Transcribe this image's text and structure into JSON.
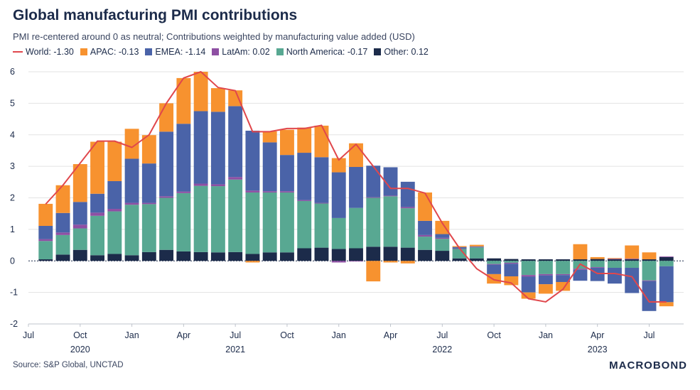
{
  "title": "Global manufacturing PMI contributions",
  "subtitle": "PMI re-centered around 0 as neutral; Contributions weighted by manufacturing value added (USD)",
  "source": "Source: S&P Global, UNCTAD",
  "logo": "MACROBOND",
  "legend": [
    {
      "label": "World: -1.30",
      "color": "#e0474c",
      "kind": "line"
    },
    {
      "label": "APAC: -0.13",
      "color": "#f7922f",
      "kind": "box"
    },
    {
      "label": "EMEA: -1.14",
      "color": "#4a63a8",
      "kind": "box"
    },
    {
      "label": "LatAm: 0.02",
      "color": "#8e4fa3",
      "kind": "box"
    },
    {
      "label": "North America: -0.17",
      "color": "#58a892",
      "kind": "box"
    },
    {
      "label": "Other: 0.12",
      "color": "#1c2b4a",
      "kind": "box"
    }
  ],
  "chart_data": {
    "type": "bar",
    "stacked": true,
    "x": [
      "2020-08",
      "2020-09",
      "2020-10",
      "2020-11",
      "2020-12",
      "2021-01",
      "2021-02",
      "2021-03",
      "2021-04",
      "2021-05",
      "2021-06",
      "2021-07",
      "2021-08",
      "2021-09",
      "2021-10",
      "2021-11",
      "2021-12",
      "2022-01",
      "2022-02",
      "2022-03",
      "2022-04",
      "2022-05",
      "2022-06",
      "2022-07",
      "2022-08",
      "2022-09",
      "2022-10",
      "2022-11",
      "2022-12",
      "2023-01",
      "2023-02",
      "2023-03",
      "2023-04",
      "2023-05",
      "2023-06",
      "2023-07",
      "2023-08"
    ],
    "x_ticks": [
      {
        "date": "2020-07",
        "label": "Jul"
      },
      {
        "date": "2020-10",
        "label": "Oct"
      },
      {
        "date": "2021-01",
        "label": "Jan"
      },
      {
        "date": "2021-04",
        "label": "Apr"
      },
      {
        "date": "2021-07",
        "label": "Jul"
      },
      {
        "date": "2021-10",
        "label": "Oct"
      },
      {
        "date": "2022-01",
        "label": "Jan"
      },
      {
        "date": "2022-04",
        "label": "Apr"
      },
      {
        "date": "2022-07",
        "label": "Jul"
      },
      {
        "date": "2022-10",
        "label": "Oct"
      },
      {
        "date": "2023-01",
        "label": "Jan"
      },
      {
        "date": "2023-04",
        "label": "Apr"
      },
      {
        "date": "2023-07",
        "label": "Jul"
      }
    ],
    "year_labels": [
      {
        "date": "2020-10",
        "label": "2020"
      },
      {
        "date": "2021-07",
        "label": "2021"
      },
      {
        "date": "2022-07",
        "label": "2022"
      },
      {
        "date": "2023-04",
        "label": "2023"
      }
    ],
    "y_ticks": [
      -2,
      -1,
      0,
      1,
      2,
      3,
      4,
      5,
      6
    ],
    "ylim": [
      -2,
      6
    ],
    "xlim": [
      "2020-07",
      "2023-09"
    ],
    "grid": true,
    "legend_position": "top-left",
    "series": [
      {
        "name": "Other",
        "color": "#1c2b4a",
        "values": [
          0.05,
          0.2,
          0.35,
          0.18,
          0.22,
          0.18,
          0.28,
          0.35,
          0.3,
          0.28,
          0.27,
          0.28,
          0.22,
          0.27,
          0.27,
          0.4,
          0.42,
          0.38,
          0.4,
          0.45,
          0.45,
          0.42,
          0.35,
          0.32,
          0.08,
          0.08,
          0.08,
          0.06,
          0.05,
          0.05,
          0.05,
          0.05,
          0.06,
          0.05,
          0.05,
          0.05,
          0.12
        ]
      },
      {
        "name": "North America",
        "color": "#58a892",
        "values": [
          0.58,
          0.62,
          0.68,
          1.25,
          1.35,
          1.6,
          1.52,
          1.65,
          1.85,
          2.1,
          2.1,
          2.3,
          1.95,
          1.9,
          1.9,
          1.5,
          1.4,
          0.98,
          1.28,
          1.55,
          1.6,
          1.25,
          0.42,
          0.38,
          0.3,
          0.35,
          -0.1,
          -0.06,
          -0.45,
          -0.42,
          -0.42,
          -0.25,
          -0.2,
          -0.22,
          -0.22,
          -0.62,
          -0.17
        ]
      },
      {
        "name": "LatAm",
        "color": "#8e4fa3",
        "values": [
          0.06,
          0.08,
          0.12,
          0.1,
          0.08,
          0.06,
          0.04,
          0.05,
          0.05,
          0.07,
          0.06,
          0.08,
          0.06,
          0.04,
          0.04,
          0.03,
          0.02,
          -0.05,
          -0.02,
          0.02,
          0.02,
          0.04,
          0.05,
          0.03,
          0.01,
          0.01,
          -0.02,
          -0.03,
          -0.05,
          -0.04,
          -0.03,
          -0.03,
          -0.02,
          0.02,
          0.02,
          -0.02,
          0.02
        ]
      },
      {
        "name": "EMEA",
        "color": "#4a63a8",
        "values": [
          0.42,
          0.62,
          0.72,
          0.6,
          0.88,
          1.4,
          1.25,
          2.05,
          2.15,
          2.3,
          2.3,
          2.25,
          1.9,
          1.55,
          1.15,
          1.5,
          1.45,
          1.45,
          1.3,
          1.0,
          0.9,
          0.8,
          0.45,
          0.12,
          0.05,
          0.02,
          -0.3,
          -0.4,
          -0.5,
          -0.28,
          -0.22,
          -0.35,
          -0.42,
          -0.5,
          -0.8,
          -0.95,
          -1.14
        ]
      },
      {
        "name": "APAC",
        "color": "#f7922f",
        "values": [
          0.7,
          0.88,
          1.2,
          1.65,
          1.25,
          0.95,
          0.9,
          0.9,
          1.45,
          1.25,
          0.75,
          0.5,
          -0.05,
          0.35,
          0.8,
          0.8,
          1.0,
          0.45,
          0.75,
          -0.65,
          -0.05,
          -0.08,
          0.9,
          0.42,
          0.03,
          0.05,
          -0.3,
          -0.28,
          -0.2,
          -0.3,
          -0.28,
          0.48,
          0.06,
          0.02,
          0.42,
          0.22,
          -0.13
        ]
      }
    ],
    "line": {
      "name": "World",
      "color": "#e0474c",
      "values": [
        1.8,
        2.4,
        3.1,
        3.8,
        3.8,
        3.6,
        4.0,
        5.0,
        5.8,
        6.0,
        5.5,
        5.4,
        4.1,
        4.1,
        4.2,
        4.2,
        4.3,
        3.2,
        3.7,
        3.0,
        2.3,
        2.3,
        2.15,
        1.2,
        0.4,
        -0.25,
        -0.6,
        -0.7,
        -1.2,
        -1.3,
        -0.9,
        -0.1,
        -0.4,
        -0.4,
        -0.5,
        -1.3,
        -1.3
      ]
    }
  }
}
